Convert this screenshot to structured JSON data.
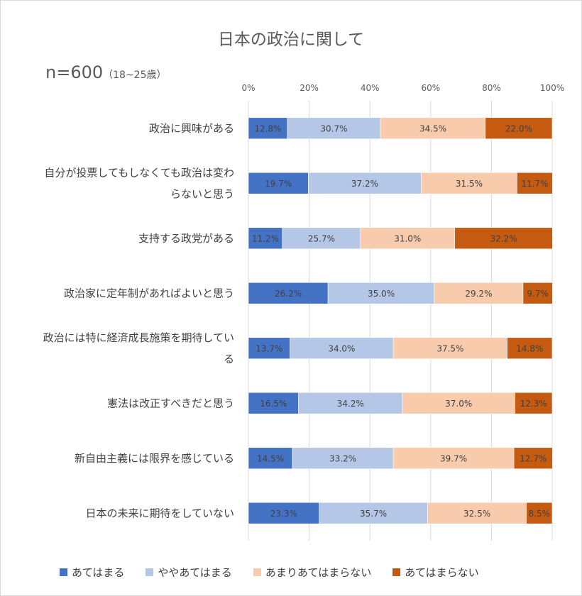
{
  "chart_data": {
    "type": "bar",
    "orientation": "horizontal",
    "stacked": true,
    "title": "日本の政治に関して",
    "sample_label": "n=600",
    "sample_sub": "（18~25歳）",
    "xlim": [
      0,
      100
    ],
    "x_ticks": [
      "0%",
      "20%",
      "40%",
      "60%",
      "80%",
      "100%"
    ],
    "x_tick_values": [
      0,
      20,
      40,
      60,
      80,
      100
    ],
    "grid": true,
    "legend_position": "bottom",
    "categories": [
      [
        "政治に興味がある"
      ],
      [
        "自分が投票してもしなくても政治は変わ",
        "らないと思う"
      ],
      [
        "支持する政党がある"
      ],
      [
        "政治家に定年制があればよいと思う"
      ],
      [
        "政治には特に経済成長施策を期待してい",
        "る"
      ],
      [
        "憲法は改正すべきだと思う"
      ],
      [
        "新自由主義には限界を感じている"
      ],
      [
        "日本の未来に期待をしていない"
      ]
    ],
    "series": [
      {
        "name": "あてはまる",
        "color": "#4472c4",
        "values": [
          12.8,
          19.7,
          11.2,
          26.2,
          13.7,
          16.5,
          14.5,
          23.3
        ],
        "labels": [
          "12.8%",
          "19.7%",
          "11.2%",
          "26.2%",
          "13.7%",
          "16.5%",
          "14.5%",
          "23.3%"
        ]
      },
      {
        "name": "ややあてはまる",
        "color": "#b4c7e7",
        "values": [
          30.7,
          37.2,
          25.7,
          35.0,
          34.0,
          34.2,
          33.2,
          35.7
        ],
        "labels": [
          "30.7%",
          "37.2%",
          "25.7%",
          "35.0%",
          "34.0%",
          "34.2%",
          "33.2%",
          "35.7%"
        ]
      },
      {
        "name": "あまりあてはまらない",
        "color": "#f8cbad",
        "values": [
          34.5,
          31.5,
          31.0,
          29.2,
          37.5,
          37.0,
          39.7,
          32.5
        ],
        "labels": [
          "34.5%",
          "31.5%",
          "31.0%",
          "29.2%",
          "37.5%",
          "37.0%",
          "39.7%",
          "32.5%"
        ]
      },
      {
        "name": "あてはまらない",
        "color": "#c55a11",
        "values": [
          22.0,
          11.7,
          32.2,
          9.7,
          14.8,
          12.3,
          12.7,
          8.5
        ],
        "labels": [
          "22.0%",
          "11.7%",
          "32.2%",
          "9.7%",
          "14.8%",
          "12.3%",
          "12.7%",
          "8.5%"
        ]
      }
    ]
  }
}
